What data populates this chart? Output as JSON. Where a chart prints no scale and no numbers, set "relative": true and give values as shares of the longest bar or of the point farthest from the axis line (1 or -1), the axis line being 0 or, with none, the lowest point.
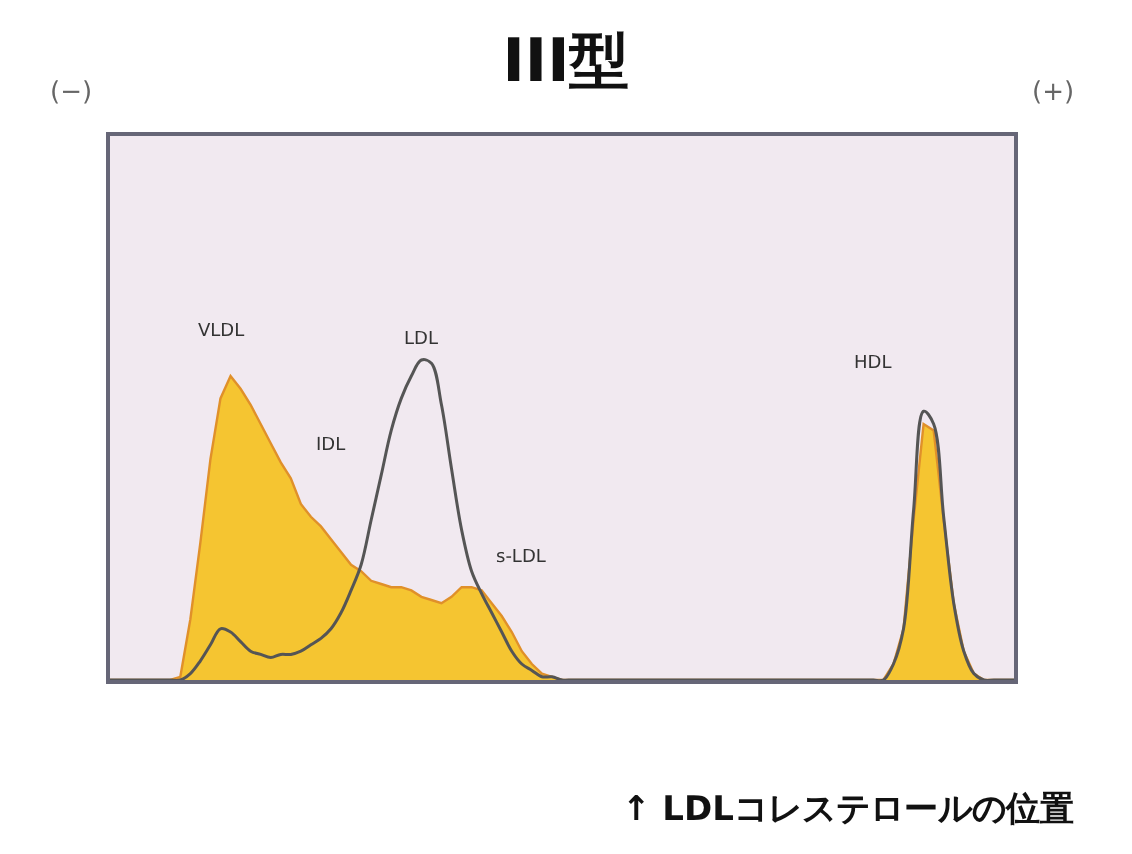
{
  "chart_data": {
    "type": "area",
    "title": "III型",
    "relative": true,
    "categories": [
      null,
      null,
      null,
      null,
      null,
      null,
      null,
      null,
      null,
      null,
      null,
      null,
      null,
      null,
      null,
      null,
      null,
      null,
      null,
      null,
      null,
      null,
      null,
      null,
      null,
      null,
      null,
      null,
      null,
      null,
      null,
      null,
      null,
      null,
      null,
      null,
      null,
      null,
      null,
      null,
      null,
      null,
      null,
      null,
      null,
      null,
      null,
      null,
      null,
      null,
      null,
      null,
      null,
      null,
      null,
      null,
      null,
      null,
      null,
      null,
      null,
      null,
      null,
      null,
      null,
      null,
      null,
      null,
      null,
      null,
      null,
      null,
      null,
      null,
      null,
      null,
      null,
      null,
      null,
      null,
      null,
      null,
      null,
      null,
      null,
      null,
      null,
      null,
      null,
      null,
      null
    ],
    "series": [
      {
        "color": "#f5c531",
        "values": [
          0,
          0,
          0,
          0,
          0,
          0,
          0,
          0.01,
          0.19,
          0.43,
          0.69,
          0.88,
          0.95,
          0.91,
          0.86,
          0.8,
          0.74,
          0.68,
          0.63,
          0.55,
          0.51,
          0.48,
          0.44,
          0.4,
          0.36,
          0.34,
          0.31,
          0.3,
          0.29,
          0.29,
          0.28,
          0.26,
          0.25,
          0.24,
          0.26,
          0.29,
          0.29,
          0.28,
          0.24,
          0.2,
          0.15,
          0.09,
          0.05,
          0.02,
          0.01,
          0,
          0,
          0,
          0,
          0,
          0,
          0,
          0,
          0,
          0,
          0,
          0,
          0,
          0,
          0,
          0,
          0,
          0,
          0,
          0,
          0,
          0,
          0,
          0,
          0,
          0,
          0,
          0,
          0,
          0,
          0,
          0,
          0,
          0.05,
          0.16,
          0.5,
          0.8,
          0.78,
          0.5,
          0.24,
          0.09,
          0.02,
          0,
          0,
          0,
          0
        ]
      },
      {
        "type": "line",
        "color": "#555555",
        "values": [
          0,
          0,
          0,
          0,
          0,
          0,
          0,
          0,
          0.02,
          0.06,
          0.11,
          0.16,
          0.15,
          0.12,
          0.09,
          0.08,
          0.07,
          0.08,
          0.08,
          0.09,
          0.11,
          0.13,
          0.16,
          0.21,
          0.28,
          0.36,
          0.5,
          0.64,
          0.78,
          0.88,
          0.95,
          1,
          0.99,
          0.86,
          0.66,
          0.47,
          0.34,
          0.27,
          0.21,
          0.15,
          0.09,
          0.05,
          0.03,
          0.01,
          0.01,
          0,
          0,
          0,
          0,
          0,
          0,
          0,
          0,
          0,
          0,
          0,
          0,
          0,
          0,
          0,
          0,
          0,
          0,
          0,
          0,
          0,
          0,
          0,
          0,
          0,
          0,
          0,
          0,
          0,
          0,
          0,
          0,
          0,
          0.05,
          0.16,
          0.53,
          0.84,
          0.8,
          0.51,
          0.24,
          0.09,
          0.02,
          0,
          0,
          0,
          0
        ]
      }
    ],
    "annotations": [
      "VLDL",
      "IDL",
      "LDL",
      "s-LDL",
      "HDL",
      "(−)",
      "(+)",
      "↑ LDLコレステロールの位置"
    ]
  }
}
